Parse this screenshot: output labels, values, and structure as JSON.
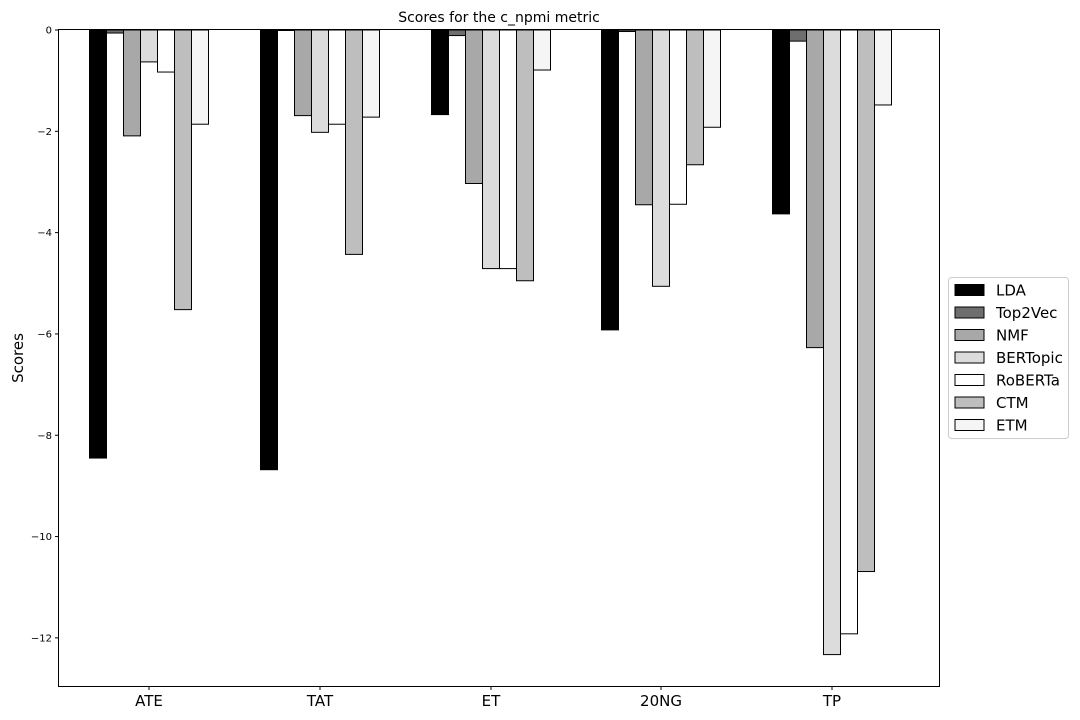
{
  "chart_data": {
    "type": "bar",
    "title": "Scores for the c_npmi metric",
    "xlabel": "",
    "ylabel": "Scores",
    "ylim": [
      -12.95,
      0
    ],
    "yticks": [
      0,
      -2,
      -4,
      -6,
      -8,
      -10,
      -12
    ],
    "ytick_labels": [
      "0",
      "−2",
      "−4",
      "−6",
      "−8",
      "−10",
      "−12"
    ],
    "categories": [
      "ATE",
      "TAT",
      "ET",
      "20NG",
      "TP"
    ],
    "legend_position": "center-right",
    "series": [
      {
        "name": "LDA",
        "color": "#000000",
        "values": [
          -8.45,
          -8.68,
          -1.67,
          -5.92,
          -3.63
        ]
      },
      {
        "name": "Top2Vec",
        "color": "#6e6e6e",
        "values": [
          -0.06,
          0.0,
          -0.11,
          -0.03,
          -0.22
        ]
      },
      {
        "name": "NMF",
        "color": "#a8a8a8",
        "values": [
          -2.09,
          -1.69,
          -3.03,
          -3.45,
          -6.27
        ]
      },
      {
        "name": "BERTopic",
        "color": "#dcdcdc",
        "values": [
          -0.63,
          -2.02,
          -4.71,
          -5.06,
          -12.33
        ]
      },
      {
        "name": "RoBERTa",
        "color": "#ffffff",
        "values": [
          -0.83,
          -1.86,
          -4.71,
          -3.44,
          -11.92
        ]
      },
      {
        "name": "CTM",
        "color": "#bebebe",
        "values": [
          -5.52,
          -4.43,
          -4.95,
          -2.66,
          -10.69
        ]
      },
      {
        "name": "ETM",
        "color": "#f5f5f5",
        "values": [
          -1.86,
          -1.72,
          -0.79,
          -1.92,
          -1.48
        ]
      }
    ]
  }
}
